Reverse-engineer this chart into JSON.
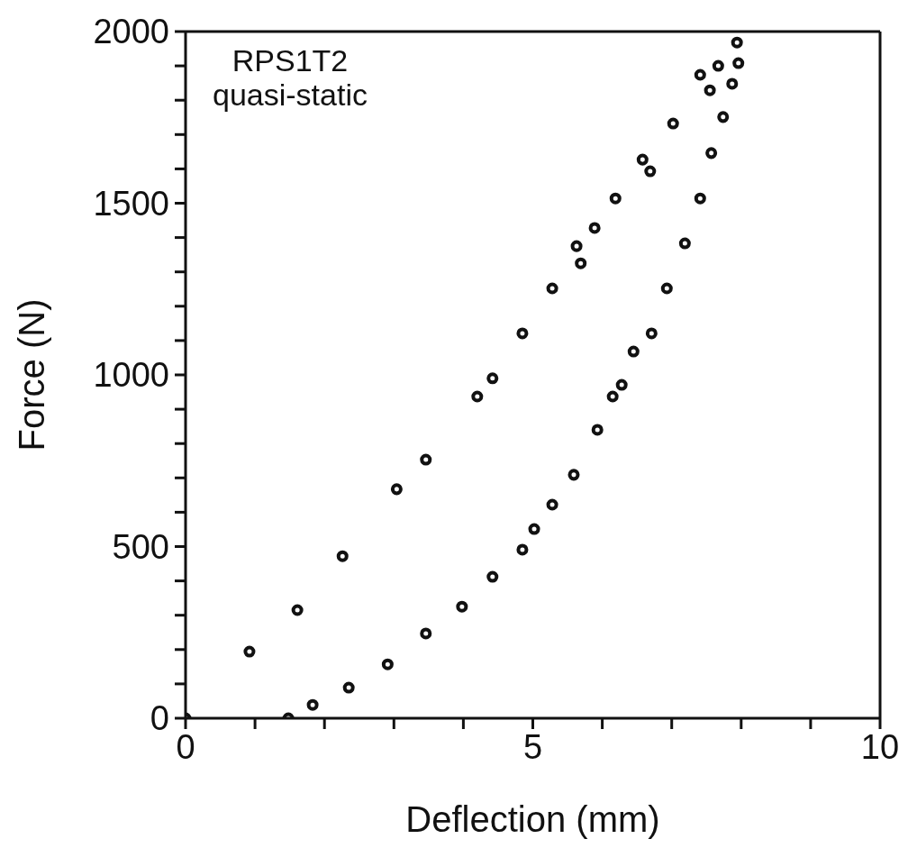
{
  "chart_data": {
    "type": "scatter",
    "xlabel": "Deflection (mm)",
    "ylabel": "Force (N)",
    "annotations": [
      "RPS1T2",
      "quasi-static"
    ],
    "marker": "circle",
    "grid": false,
    "legend": false,
    "xlim": [
      0,
      10
    ],
    "ylim": [
      0,
      2000
    ],
    "xticks": [
      0,
      {
        "value": 1,
        "label": null
      },
      {
        "value": 2,
        "label": null
      },
      {
        "value": 3,
        "label": null
      },
      {
        "value": 4,
        "label": null
      },
      5,
      {
        "value": 6,
        "label": null
      },
      {
        "value": 7,
        "label": null
      },
      {
        "value": 8,
        "label": null
      },
      {
        "value": 9,
        "label": null
      },
      10
    ],
    "yticks": [
      0,
      {
        "value": 100,
        "label": null
      },
      {
        "value": 200,
        "label": null
      },
      {
        "value": 300,
        "label": null
      },
      {
        "value": 400,
        "label": null
      },
      500,
      {
        "value": 600,
        "label": null
      },
      {
        "value": 700,
        "label": null
      },
      {
        "value": 800,
        "label": null
      },
      {
        "value": 900,
        "label": null
      },
      1000,
      {
        "value": 1100,
        "label": null
      },
      {
        "value": 1200,
        "label": null
      },
      {
        "value": 1300,
        "label": null
      },
      {
        "value": 1400,
        "label": null
      },
      1500,
      {
        "value": 1600,
        "label": null
      },
      {
        "value": 1700,
        "label": null
      },
      {
        "value": 1800,
        "label": null
      },
      {
        "value": 1900,
        "label": null
      },
      2000
    ],
    "series": [
      {
        "color": "#111111",
        "x": [
          0,
          0.92,
          1.61,
          2.26,
          3.04,
          3.46,
          4.2,
          4.42,
          4.85,
          5.28,
          5.63,
          5.69,
          5.89,
          6.19,
          6.58,
          6.69,
          7.02,
          7.41,
          7.55,
          7.67,
          7.94
        ],
        "values": [
          0,
          194,
          315,
          472,
          667,
          753,
          937,
          990,
          1121,
          1252,
          1375,
          1325,
          1428,
          1514,
          1627,
          1593,
          1732,
          1874,
          1829,
          1900,
          1968
        ]
      },
      {
        "color": "#111111",
        "x": [
          7.96,
          7.87,
          7.74,
          7.57,
          7.41,
          7.19,
          6.93,
          6.71,
          6.45,
          6.28,
          6.15,
          5.93,
          5.59,
          5.28,
          5.02,
          4.85,
          4.42,
          3.98,
          3.46,
          2.91,
          2.35,
          1.83,
          1.48
        ],
        "values": [
          1908,
          1848,
          1751,
          1646,
          1514,
          1383,
          1252,
          1121,
          1068,
          971,
          937,
          840,
          709,
          622,
          551,
          491,
          412,
          325,
          247,
          157,
          89,
          39,
          0
        ]
      }
    ]
  }
}
